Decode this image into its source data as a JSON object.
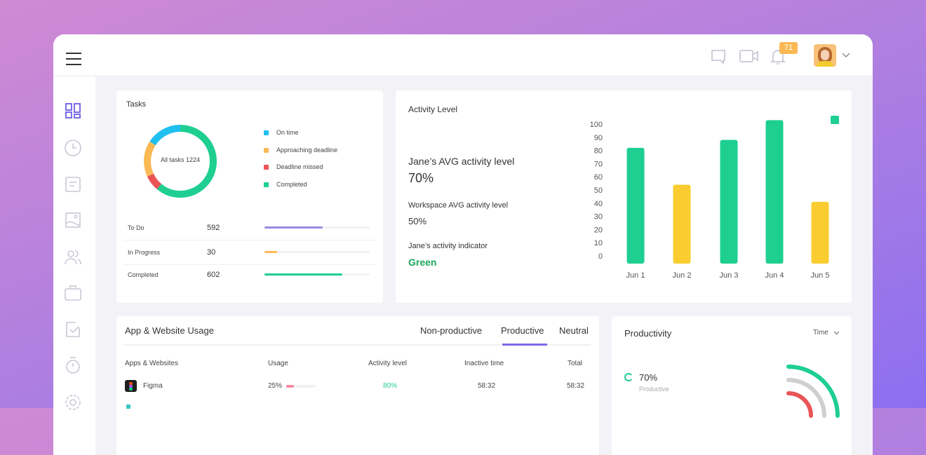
{
  "header": {
    "notification_count": "71",
    "icons": [
      "chat-icon",
      "video-icon",
      "bell-icon",
      "avatar",
      "chevron-down-icon"
    ]
  },
  "sidebar": {
    "items": [
      "dashboard-icon",
      "clock-icon",
      "document-icon",
      "image-icon",
      "users-icon",
      "briefcase-icon",
      "checklist-icon",
      "timer-icon",
      "settings-icon"
    ],
    "active": "dashboard-icon",
    "active_color": "#7b6be6"
  },
  "tasks": {
    "title": "Tasks",
    "center_label": "All tasks 1224",
    "legend": [
      {
        "label": "On time",
        "color": "#1ec0f0",
        "share": 0.16
      },
      {
        "label": "Approaching deadline",
        "color": "#fbb954",
        "share": 0.16
      },
      {
        "label": "Deadline missed",
        "color": "#ea5456",
        "share": 0.07
      },
      {
        "label": "Completed",
        "color": "#1ecf91",
        "share": 0.61
      }
    ],
    "rows": [
      {
        "label": "To Do",
        "value": "592",
        "progress": 0.55,
        "color": "#9a88e0"
      },
      {
        "label": "In Progress",
        "value": "30",
        "progress": 0.12,
        "color": "#fbb954"
      },
      {
        "label": "Completed",
        "value": "602",
        "progress": 0.74,
        "color": "#1ecf91"
      }
    ]
  },
  "activity": {
    "title": "Activity Level",
    "jane_label": "Jane’s AVG activity level",
    "jane_value": "70%",
    "workspace_label": "Workspace AVG activity level",
    "workspace_value": "50%",
    "indicator_label": "Jane’s activity indicator",
    "indicator_value": "Green",
    "indicator_color": "#1aa85a"
  },
  "chart_data": {
    "type": "bar",
    "categories": [
      "Jun 1",
      "Jun 2",
      "Jun 3",
      "Jun 4",
      "Jun 5"
    ],
    "values": [
      82,
      54,
      88,
      103,
      41
    ],
    "colors": [
      "#1ecf91",
      "#f9cd2f",
      "#1ecf91",
      "#1ecf91",
      "#f9cd2f"
    ],
    "yticks": [
      "0",
      "10",
      "20",
      "30",
      "40",
      "50",
      "60",
      "70",
      "80",
      "90",
      "100"
    ],
    "ylim": [
      0,
      100
    ],
    "legend_color": "#1ecf91"
  },
  "usage": {
    "title": "App & Website Usage",
    "tabs": [
      "Non-productive",
      "Productive",
      "Neutral"
    ],
    "active_tab": "Productive",
    "columns": [
      "Apps & Websites",
      "Usage",
      "Activity level",
      "Inactive time",
      "Total"
    ],
    "rows": [
      {
        "app": "Figma",
        "usage": "25%",
        "usage_fraction": 0.25,
        "activity": "80%",
        "inactive": "58:32",
        "total": "58:32"
      }
    ]
  },
  "productivity": {
    "title": "Productivity",
    "filter": "Time",
    "items": [
      {
        "value": "70%",
        "label": "Productive",
        "color": "#1ecf91"
      }
    ],
    "arc_colors": [
      "#1ecf91",
      "#cfcfcf",
      "#ea5456"
    ]
  }
}
